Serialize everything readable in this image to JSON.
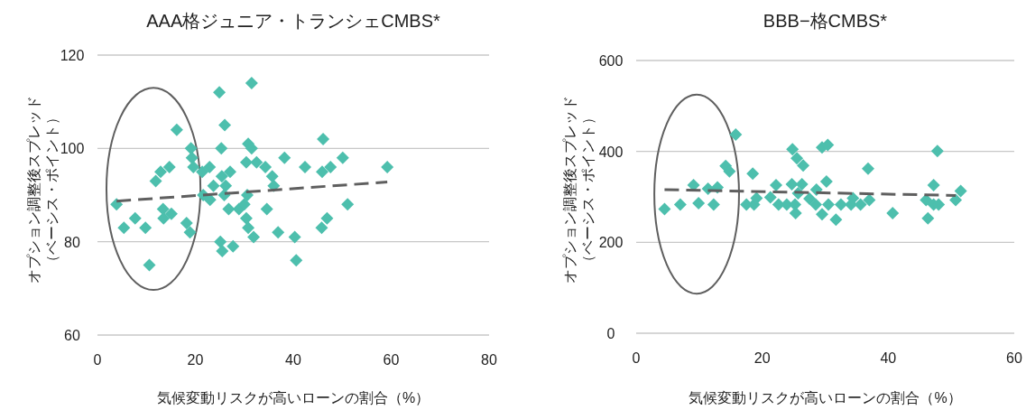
{
  "chart_data": [
    {
      "type": "scatter",
      "title": "AAA格ジュニア・トランシェCMBS*",
      "xlabel": "気候変動リスクが高いローンの割合（%）",
      "ylabel": "オプション調整後スプレッド（ベーシス・ポイント）",
      "xlim": [
        0,
        80
      ],
      "xticks": [
        0,
        20,
        40,
        60,
        80
      ],
      "ylim": [
        60,
        120
      ],
      "yticks": [
        60,
        80,
        100,
        120
      ],
      "grid": "y",
      "marker": "diamond",
      "series": [
        {
          "type": "scatter",
          "color": "#4dbfad",
          "x": [
            3.9,
            5.4,
            7.7,
            9.8,
            10.6,
            11.9,
            12.9,
            14.7,
            13.4,
            13.5,
            15.1,
            16.2,
            18.2,
            18.9,
            19.1,
            19.3,
            19.6,
            21.4,
            22.9,
            21.6,
            23.0,
            23.7,
            24.9,
            31.5,
            26.0,
            25.3,
            25.4,
            27.1,
            26.2,
            25.9,
            26.8,
            25.1,
            25.5,
            27.7,
            28.9,
            30.0,
            30.4,
            30.8,
            31.9,
            30.6,
            30.8,
            31.5,
            30.4,
            32.5,
            34.3,
            35.7,
            36.0,
            34.6,
            36.9,
            38.2,
            40.3,
            40.6,
            42.4,
            46.1,
            45.9,
            47.6,
            46.9,
            45.8,
            50.1,
            51.1,
            59.2
          ],
          "values": [
            88,
            83,
            85,
            83,
            75,
            93,
            95,
            96,
            87,
            85,
            86,
            104,
            84,
            82,
            100,
            98,
            96,
            95,
            96,
            90,
            89,
            92,
            112,
            114,
            105,
            100,
            94,
            95,
            92,
            90,
            87,
            80,
            78,
            79,
            87,
            88,
            85,
            83,
            81,
            90,
            101,
            100,
            97,
            97,
            96,
            94,
            92,
            87,
            82,
            98,
            81,
            76,
            96,
            102,
            95,
            96,
            85,
            83,
            98,
            88,
            96
          ]
        },
        {
          "type": "line",
          "color": "#5f5f5f",
          "line_style": "dashed",
          "marker": "none",
          "x": [
            3.9,
            59.2
          ],
          "values": [
            88.7,
            92.8
          ]
        }
      ]
    },
    {
      "type": "scatter",
      "title": "BBB−格CMBS*",
      "xlabel": "気候変動リスクが高いローンの割合（%）",
      "ylabel": "オプション調整後スプレッド（ベーシス・ポイント）",
      "xlim": [
        0,
        60
      ],
      "xticks": [
        0,
        20,
        40,
        60
      ],
      "ylim": [
        0,
        600
      ],
      "yticks": [
        0,
        200,
        400,
        600
      ],
      "grid": "y",
      "marker": "diamond",
      "series": [
        {
          "type": "scatter",
          "color": "#4dbfad",
          "x": [
            4.5,
            7.0,
            9.1,
            9.9,
            11.4,
            12.3,
            12.9,
            14.2,
            14.8,
            15.8,
            18.5,
            17.5,
            18.7,
            19.1,
            21.3,
            22.2,
            22.6,
            23.9,
            24.8,
            25.5,
            26.5,
            24.7,
            26.3,
            25.7,
            25.2,
            25.3,
            27.5,
            28.6,
            28.5,
            29.5,
            29.5,
            30.4,
            30.3,
            30.2,
            30.5,
            32.5,
            31.7,
            34.4,
            34.1,
            35.6,
            37.0,
            36.8,
            40.7,
            46.0,
            47.2,
            47.2,
            48.0,
            46.3,
            47.8,
            50.7,
            51.5
          ],
          "values": [
            273,
            283,
            326,
            286,
            318,
            283,
            321,
            368,
            356,
            437,
            351,
            283,
            283,
            297,
            299,
            326,
            283,
            283,
            405,
            385,
            369,
            328,
            328,
            308,
            283,
            264,
            296,
            316,
            283,
            262,
            409,
            414,
            null,
            334,
            283,
            283,
            250,
            297,
            283,
            283,
            293,
            362,
            264,
            293,
            326,
            283,
            283,
            253,
            401,
            293,
            313
          ]
        },
        {
          "type": "line",
          "color": "#5f5f5f",
          "line_style": "dashed",
          "marker": "none",
          "x": [
            4.5,
            50.7
          ],
          "values": [
            316,
            303
          ]
        }
      ]
    }
  ]
}
